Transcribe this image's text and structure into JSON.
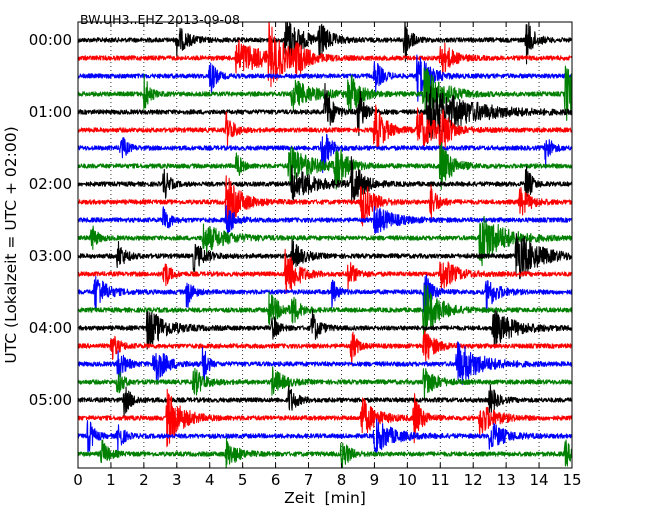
{
  "chart_data": {
    "type": "line",
    "title": "BW.UH3..EHZ 2013-09-08",
    "xlabel": "Zeit  [min]",
    "ylabel": "UTC (Lokalzeit = UTC + 02:00)",
    "xlim": [
      0,
      15
    ],
    "xticks": [
      0,
      1,
      2,
      3,
      4,
      5,
      6,
      7,
      8,
      9,
      10,
      11,
      12,
      13,
      14,
      15
    ],
    "x_tick_labels": [
      "0",
      "1",
      "2",
      "3",
      "4",
      "5",
      "6",
      "7",
      "8",
      "9",
      "10",
      "11",
      "12",
      "13",
      "14",
      "15"
    ],
    "trace_interval_min": 15,
    "grid": "vertical dotted",
    "trace_colors": [
      "#000000",
      "#ff0000",
      "#0000ff",
      "#008000"
    ],
    "hour_labels": [
      {
        "trace_index": 0,
        "label": "00:00"
      },
      {
        "trace_index": 4,
        "label": "01:00"
      },
      {
        "trace_index": 8,
        "label": "02:00"
      },
      {
        "trace_index": 12,
        "label": "03:00"
      },
      {
        "trace_index": 16,
        "label": "04:00"
      },
      {
        "trace_index": 20,
        "label": "05:00"
      }
    ],
    "series": [
      {
        "start": "00:00",
        "events": [
          [
            3.0,
            0.5,
            0.3
          ],
          [
            6.3,
            0.9,
            0.4
          ],
          [
            7.3,
            0.6,
            0.3
          ],
          [
            13.6,
            0.8,
            0.2
          ],
          [
            9.9,
            1.0,
            0.15
          ]
        ]
      },
      {
        "start": "00:15",
        "events": [
          [
            4.8,
            0.6,
            0.8
          ],
          [
            5.8,
            1.0,
            0.4
          ],
          [
            6.6,
            0.5,
            0.3
          ],
          [
            11.0,
            0.7,
            0.3
          ]
        ]
      },
      {
        "start": "00:30",
        "events": [
          [
            4.0,
            0.7,
            0.15
          ],
          [
            9.0,
            0.6,
            0.2
          ],
          [
            10.3,
            0.9,
            0.3
          ]
        ]
      },
      {
        "start": "00:45",
        "events": [
          [
            2.0,
            0.7,
            0.15
          ],
          [
            6.5,
            0.5,
            0.6
          ],
          [
            8.2,
            0.8,
            0.3
          ],
          [
            10.5,
            1.0,
            0.5
          ],
          [
            14.8,
            1.0,
            0.4
          ]
        ]
      },
      {
        "start": "01:00",
        "events": [
          [
            7.5,
            1.0,
            0.2
          ],
          [
            8.5,
            0.9,
            0.2
          ],
          [
            10.6,
            1.0,
            1.1
          ]
        ]
      },
      {
        "start": "01:15",
        "events": [
          [
            4.5,
            0.6,
            0.2
          ],
          [
            9.0,
            0.9,
            0.3
          ],
          [
            10.3,
            0.7,
            0.5
          ],
          [
            11.0,
            1.0,
            0.2
          ]
        ]
      },
      {
        "start": "01:30",
        "events": [
          [
            1.3,
            0.5,
            0.15
          ],
          [
            7.4,
            0.9,
            0.2
          ],
          [
            14.2,
            0.6,
            0.15
          ]
        ]
      },
      {
        "start": "01:45",
        "events": [
          [
            4.8,
            0.5,
            0.15
          ],
          [
            6.4,
            0.7,
            0.6
          ],
          [
            7.8,
            0.8,
            0.3
          ],
          [
            11.0,
            0.9,
            0.3
          ]
        ]
      },
      {
        "start": "02:00",
        "events": [
          [
            2.6,
            0.6,
            0.15
          ],
          [
            6.5,
            0.6,
            0.6
          ],
          [
            8.3,
            0.9,
            0.3
          ],
          [
            13.6,
            0.7,
            0.15
          ]
        ]
      },
      {
        "start": "02:15",
        "events": [
          [
            4.5,
            0.9,
            0.4
          ],
          [
            8.6,
            0.9,
            0.3
          ],
          [
            10.7,
            0.6,
            0.2
          ],
          [
            13.4,
            0.5,
            0.3
          ]
        ]
      },
      {
        "start": "02:30",
        "events": [
          [
            2.6,
            0.6,
            0.15
          ],
          [
            4.5,
            0.6,
            0.2
          ],
          [
            9.0,
            0.5,
            0.5
          ]
        ]
      },
      {
        "start": "02:45",
        "events": [
          [
            0.4,
            0.5,
            0.15
          ],
          [
            3.8,
            0.5,
            0.6
          ],
          [
            12.2,
            1.0,
            0.6
          ]
        ]
      },
      {
        "start": "03:00",
        "events": [
          [
            1.2,
            0.5,
            0.2
          ],
          [
            3.5,
            0.5,
            0.3
          ],
          [
            6.5,
            0.5,
            0.3
          ],
          [
            13.3,
            0.9,
            0.6
          ]
        ]
      },
      {
        "start": "03:15",
        "events": [
          [
            2.6,
            0.6,
            0.15
          ],
          [
            6.3,
            1.0,
            0.3
          ],
          [
            8.2,
            0.5,
            0.2
          ],
          [
            11.0,
            0.6,
            0.4
          ]
        ]
      },
      {
        "start": "03:30",
        "events": [
          [
            0.5,
            0.7,
            0.3
          ],
          [
            3.3,
            0.6,
            0.15
          ],
          [
            7.7,
            0.5,
            0.15
          ],
          [
            10.5,
            0.8,
            0.2
          ],
          [
            12.4,
            0.6,
            0.3
          ]
        ]
      },
      {
        "start": "03:45",
        "events": [
          [
            5.8,
            0.6,
            0.3
          ],
          [
            10.5,
            1.0,
            0.4
          ],
          [
            6.5,
            0.5,
            0.2
          ]
        ]
      },
      {
        "start": "04:00",
        "events": [
          [
            2.1,
            0.7,
            0.5
          ],
          [
            7.1,
            0.6,
            0.2
          ],
          [
            12.6,
            0.6,
            0.6
          ],
          [
            5.9,
            0.5,
            0.15
          ]
        ]
      },
      {
        "start": "04:15",
        "events": [
          [
            1.0,
            0.5,
            0.2
          ],
          [
            8.3,
            0.6,
            0.15
          ],
          [
            10.5,
            0.6,
            0.3
          ]
        ]
      },
      {
        "start": "04:30",
        "events": [
          [
            1.2,
            0.6,
            0.2
          ],
          [
            2.3,
            0.8,
            0.3
          ],
          [
            3.8,
            1.0,
            0.1
          ],
          [
            11.5,
            0.8,
            0.6
          ]
        ]
      },
      {
        "start": "04:45",
        "events": [
          [
            1.2,
            0.5,
            0.15
          ],
          [
            3.5,
            0.5,
            0.3
          ],
          [
            5.9,
            0.5,
            0.3
          ],
          [
            10.5,
            0.6,
            0.3
          ]
        ]
      },
      {
        "start": "05:00",
        "events": [
          [
            1.4,
            0.5,
            0.2
          ],
          [
            6.4,
            0.5,
            0.2
          ],
          [
            12.5,
            0.5,
            0.2
          ]
        ]
      },
      {
        "start": "05:15",
        "events": [
          [
            2.7,
            1.0,
            0.4
          ],
          [
            8.6,
            0.7,
            0.4
          ],
          [
            10.2,
            0.9,
            0.2
          ],
          [
            12.2,
            0.6,
            0.4
          ]
        ]
      },
      {
        "start": "05:30",
        "events": [
          [
            0.3,
            0.7,
            0.15
          ],
          [
            1.2,
            0.6,
            0.15
          ],
          [
            9.0,
            0.6,
            0.5
          ],
          [
            12.5,
            0.5,
            0.4
          ]
        ]
      },
      {
        "start": "05:45",
        "events": [
          [
            0.7,
            0.5,
            0.2
          ],
          [
            4.5,
            0.5,
            0.3
          ],
          [
            8.0,
            0.6,
            0.2
          ],
          [
            14.8,
            0.5,
            0.15
          ]
        ]
      }
    ]
  }
}
